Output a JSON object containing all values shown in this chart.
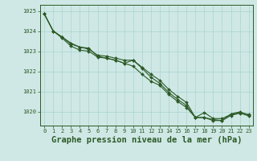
{
  "title": "Graphe pression niveau de la mer (hPa)",
  "background_color": "#cfe8e5",
  "grid_color": "#a8d4d0",
  "line_color": "#2d5a27",
  "xlim": [
    -0.5,
    23.5
  ],
  "ylim": [
    1019.3,
    1025.3
  ],
  "yticks": [
    1020,
    1021,
    1022,
    1023,
    1024,
    1025
  ],
  "xticks": [
    0,
    1,
    2,
    3,
    4,
    5,
    6,
    7,
    8,
    9,
    10,
    11,
    12,
    13,
    14,
    15,
    16,
    17,
    18,
    19,
    20,
    21,
    22,
    23
  ],
  "series": [
    [
      1024.85,
      1024.0,
      1023.7,
      1023.35,
      1023.2,
      1023.1,
      1022.8,
      1022.75,
      1022.65,
      1022.55,
      1022.55,
      1022.2,
      1021.85,
      1021.55,
      1021.1,
      1020.75,
      1020.45,
      1019.7,
      1019.95,
      1019.65,
      1019.65,
      1019.85,
      1019.95,
      1019.85
    ],
    [
      1024.85,
      1024.0,
      1023.65,
      1023.25,
      1023.05,
      1023.0,
      1022.7,
      1022.65,
      1022.55,
      1022.4,
      1022.25,
      1021.85,
      1021.5,
      1021.3,
      1020.85,
      1020.5,
      1020.2,
      1019.7,
      1019.7,
      1019.55,
      1019.55,
      1019.8,
      1019.92,
      1019.78
    ],
    [
      1024.85,
      1024.0,
      1023.7,
      1023.4,
      1023.2,
      1023.15,
      1022.75,
      1022.65,
      1022.55,
      1022.4,
      1022.55,
      1022.15,
      1021.7,
      1021.4,
      1020.95,
      1020.6,
      1020.3,
      1019.7,
      1019.7,
      1019.6,
      1019.55,
      1019.88,
      1019.98,
      1019.82
    ]
  ],
  "marker": "D",
  "markersize": 2.0,
  "linewidth": 0.8,
  "title_fontsize": 7.5,
  "tick_fontsize": 5.0,
  "tick_color": "#2d5a27",
  "axis_color": "#2d5a27",
  "label_fontsize": 8
}
